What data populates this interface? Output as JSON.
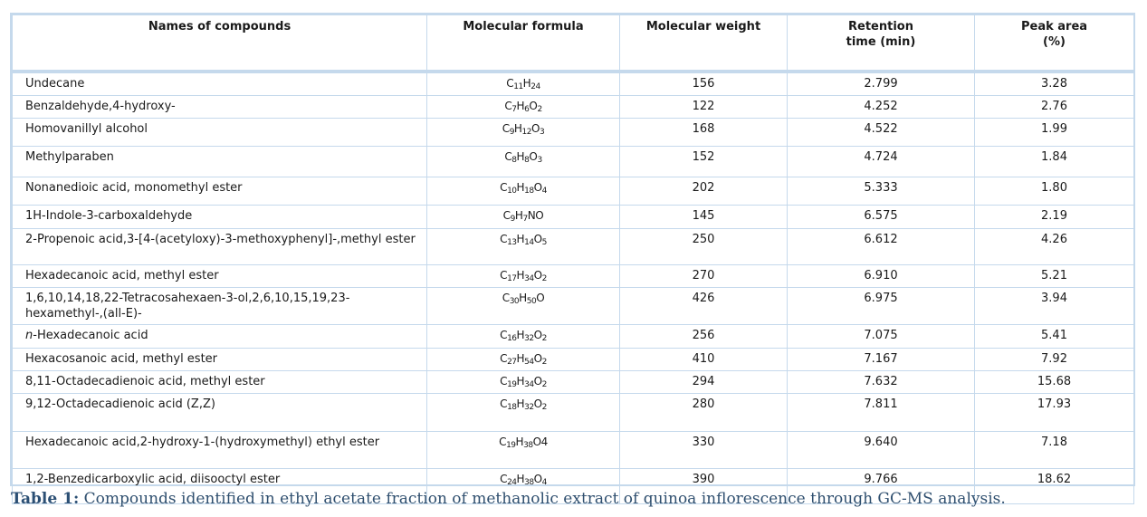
{
  "table": {
    "headers": [
      "Names of compounds",
      "Molecular formula",
      "Molecular weight",
      "Retention\ntime (min)",
      "Peak area\n(%)"
    ],
    "rows": [
      {
        "name": "Undecane",
        "italic_prefix": "",
        "formula": [
          [
            "C",
            "11"
          ],
          [
            "H",
            "24"
          ]
        ],
        "mw": "156",
        "rt": "2.799",
        "area": "3.28",
        "h": 22
      },
      {
        "name": "Benzaldehyde,4-hydroxy-",
        "italic_prefix": "",
        "formula": [
          [
            "C",
            "7"
          ],
          [
            "H",
            "6"
          ],
          [
            "O",
            "2"
          ]
        ],
        "mw": "122",
        "rt": "4.252",
        "area": "2.76",
        "h": 21
      },
      {
        "name": "Homovanillyl alcohol",
        "italic_prefix": "",
        "formula": [
          [
            "C",
            "9"
          ],
          [
            "H",
            "12"
          ],
          [
            "O",
            "3"
          ]
        ],
        "mw": "168",
        "rt": "4.522",
        "area": "1.99",
        "h": 31
      },
      {
        "name": "Methylparaben",
        "italic_prefix": "",
        "formula": [
          [
            "C",
            "8"
          ],
          [
            "H",
            "8"
          ],
          [
            "O",
            "3"
          ]
        ],
        "mw": "152",
        "rt": "4.724",
        "area": "1.84",
        "h": 34
      },
      {
        "name": "Nonanedioic acid, monomethyl ester",
        "italic_prefix": "",
        "formula": [
          [
            "C",
            "10"
          ],
          [
            "H",
            "18"
          ],
          [
            "O",
            "4"
          ]
        ],
        "mw": "202",
        "rt": "5.333",
        "area": "1.80",
        "h": 31
      },
      {
        "name": "1H-Indole-3-carboxaldehyde",
        "italic_prefix": "",
        "formula": [
          [
            "C",
            "9"
          ],
          [
            "H",
            "7"
          ],
          [
            "NO",
            ""
          ]
        ],
        "mw": "145",
        "rt": "6.575",
        "area": "2.19",
        "h": 26
      },
      {
        "name": "2-Propenoic acid,3-[4-(acetyloxy)-3-methoxyphenyl]-,methyl ester",
        "italic_prefix": "",
        "formula": [
          [
            "C",
            "13"
          ],
          [
            "H",
            "14"
          ],
          [
            "O",
            "5"
          ]
        ],
        "mw": "250",
        "rt": "6.612",
        "area": "4.26",
        "h": 40
      },
      {
        "name": "Hexadecanoic acid, methyl ester",
        "italic_prefix": "",
        "formula": [
          [
            "C",
            "17"
          ],
          [
            "H",
            "34"
          ],
          [
            "O",
            "2"
          ]
        ],
        "mw": "270",
        "rt": "6.910",
        "area": "5.21",
        "h": 20
      },
      {
        "name": "1,6,10,14,18,22-Tetracosahexaen-3-ol,2,6,10,15,19,23-hexamethyl-,(all-E)-",
        "italic_prefix": "",
        "formula": [
          [
            "C",
            "30"
          ],
          [
            "H",
            "50"
          ],
          [
            "O",
            ""
          ]
        ],
        "mw": "426",
        "rt": "6.975",
        "area": "3.94",
        "h": 41
      },
      {
        "name": "-Hexadecanoic acid",
        "italic_prefix": "n",
        "formula": [
          [
            "C",
            "16"
          ],
          [
            "H",
            "32"
          ],
          [
            "O",
            "2"
          ]
        ],
        "mw": "256",
        "rt": "7.075",
        "area": "5.41",
        "h": 26
      },
      {
        "name": "Hexacosanoic acid, methyl ester",
        "italic_prefix": "",
        "formula": [
          [
            "C",
            "27"
          ],
          [
            "H",
            "54"
          ],
          [
            "O",
            "2"
          ]
        ],
        "mw": "410",
        "rt": "7.167",
        "area": "7.92",
        "h": 21
      },
      {
        "name": "8,11-Octadecadienoic acid, methyl ester",
        "italic_prefix": "",
        "formula": [
          [
            "C",
            "19"
          ],
          [
            "H",
            "34"
          ],
          [
            "O",
            "2"
          ]
        ],
        "mw": "294",
        "rt": "7.632",
        "area": "15.68",
        "h": 21
      },
      {
        "name": "9,12-Octadecadienoic acid (Z,Z)",
        "italic_prefix": "",
        "formula": [
          [
            "C",
            "18"
          ],
          [
            "H",
            "32"
          ],
          [
            "O",
            "2"
          ]
        ],
        "mw": "280",
        "rt": "7.811",
        "area": "17.93",
        "h": 42
      },
      {
        "name": "Hexadecanoic acid,2-hydroxy-1-(hydroxymethyl) ethyl ester",
        "italic_prefix": "",
        "formula": [
          [
            "C",
            "19"
          ],
          [
            "H",
            "38"
          ],
          [
            "O4",
            ""
          ]
        ],
        "mw": "330",
        "rt": "9.640",
        "area": "7.18",
        "h": 41
      },
      {
        "name": "1,2-Benzedicarboxylic acid, diisooctyl ester",
        "italic_prefix": "",
        "formula": [
          [
            "C",
            "24"
          ],
          [
            "H",
            "38"
          ],
          [
            "O",
            "4"
          ]
        ],
        "mw": "390",
        "rt": "9.766",
        "area": "18.62",
        "h": 39
      }
    ]
  },
  "caption": {
    "label": "Table 1:",
    "text": " Compounds identified in ethyl acetate fraction of methanolic extract of quinoa inflorescence through GC-MS analysis."
  }
}
